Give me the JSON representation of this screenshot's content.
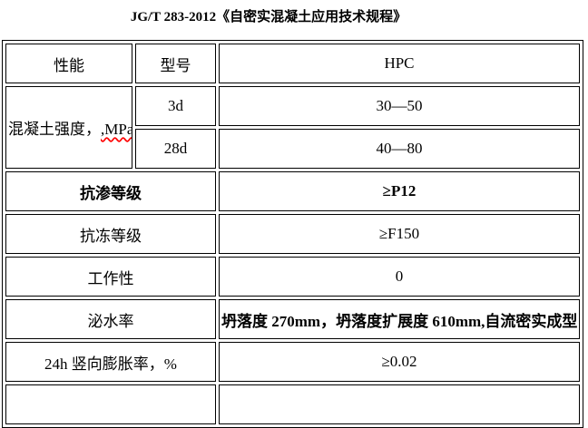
{
  "title": "JG/T 283-2012《自密实混凝土应用技术规程》",
  "colors": {
    "border": "#000000",
    "text": "#000000",
    "spellcheck_squiggle": "#ff0000",
    "background": "#ffffff"
  },
  "table": {
    "header": {
      "performance": "性能",
      "model": "型号",
      "type": "HPC"
    },
    "strength": {
      "label": "混凝土强度，",
      "label_suffix": ",MPa",
      "rows": [
        {
          "age": "3d",
          "value": "30—50"
        },
        {
          "age": "28d",
          "value": "40—80"
        }
      ]
    },
    "rows": [
      {
        "label": "抗渗等级",
        "value": "≥P12"
      },
      {
        "label": "抗冻等级",
        "value": "≥F150"
      },
      {
        "label": "工作性",
        "value": "0"
      },
      {
        "label": "泌水率",
        "value": "坍落度 270mm，坍落度扩展度 610mm,自流密实成型"
      },
      {
        "label": "24h 竖向膨胀率，%",
        "value": "≥0.02"
      }
    ]
  }
}
